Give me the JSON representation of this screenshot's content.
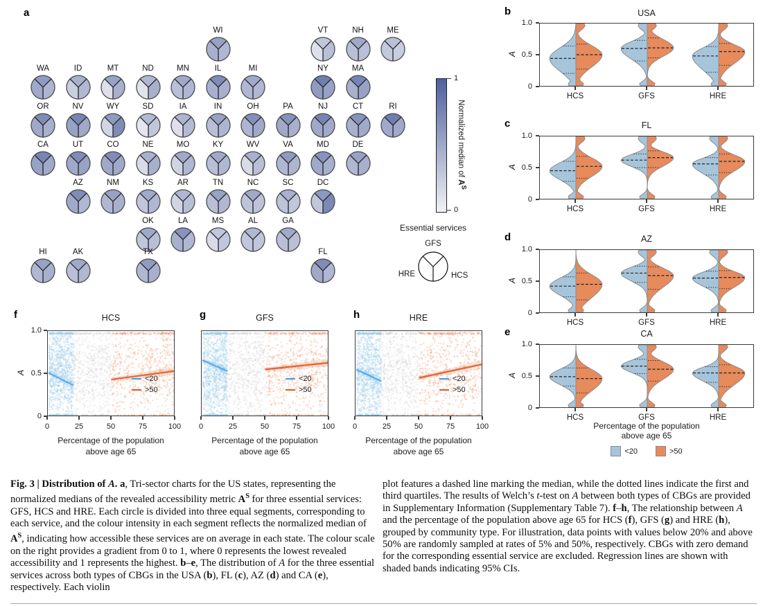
{
  "colors": {
    "map_low": "#f1f1f5",
    "map_high": "#4e619e",
    "violin_blue": "#a6c5db",
    "violin_orange": "#e78a5c",
    "violin_stroke": "#8c8c8c",
    "scatter_blue_pt": "#96c8e8",
    "scatter_orange_pt": "#ee8c5f",
    "scatter_gray_pt": "#b4b4b4",
    "line_blue": "#3c9ce8",
    "line_orange": "#d85c28",
    "axis": "#3a3a3a"
  },
  "panel_a": {
    "label": "a",
    "colorbar": {
      "top_tick": "1",
      "bottom_tick": "0",
      "title_prefix": "Normalized median of ",
      "title_math": "A",
      "title_sup": "S"
    },
    "services_legend": {
      "title": "Essential services",
      "top": "GFS",
      "left": "HRE",
      "right": "HCS"
    },
    "states": [
      {
        "abbr": "WI",
        "row": 1,
        "col": 6,
        "gfs": 0.55,
        "hre": 0.45,
        "hcs": 0.4
      },
      {
        "abbr": "VT",
        "row": 1,
        "col": 9,
        "gfs": 0.3,
        "hre": 0.12,
        "hcs": 0.35
      },
      {
        "abbr": "NH",
        "row": 1,
        "col": 10,
        "gfs": 0.5,
        "hre": 0.35,
        "hcs": 0.35
      },
      {
        "abbr": "ME",
        "row": 1,
        "col": 11,
        "gfs": 0.35,
        "hre": 0.28,
        "hcs": 0.25
      },
      {
        "abbr": "WA",
        "row": 2,
        "col": 1,
        "gfs": 0.6,
        "hre": 0.5,
        "hcs": 0.42
      },
      {
        "abbr": "ID",
        "row": 2,
        "col": 2,
        "gfs": 0.45,
        "hre": 0.25,
        "hcs": 0.4
      },
      {
        "abbr": "MT",
        "row": 2,
        "col": 3,
        "gfs": 0.55,
        "hre": 0.12,
        "hcs": 0.45
      },
      {
        "abbr": "ND",
        "row": 2,
        "col": 4,
        "gfs": 0.4,
        "hre": 0.1,
        "hcs": 0.45
      },
      {
        "abbr": "MN",
        "row": 2,
        "col": 5,
        "gfs": 0.5,
        "hre": 0.35,
        "hcs": 0.4
      },
      {
        "abbr": "IL",
        "row": 2,
        "col": 6,
        "gfs": 0.7,
        "hre": 0.45,
        "hcs": 0.45
      },
      {
        "abbr": "MI",
        "row": 2,
        "col": 7,
        "gfs": 0.5,
        "hre": 0.4,
        "hcs": 0.4
      },
      {
        "abbr": "NY",
        "row": 2,
        "col": 9,
        "gfs": 0.8,
        "hre": 0.6,
        "hcs": 0.55
      },
      {
        "abbr": "MA",
        "row": 2,
        "col": 10,
        "gfs": 0.75,
        "hre": 0.45,
        "hcs": 0.55
      },
      {
        "abbr": "OR",
        "row": 3,
        "col": 1,
        "gfs": 0.7,
        "hre": 0.5,
        "hcs": 0.45
      },
      {
        "abbr": "NV",
        "row": 3,
        "col": 2,
        "gfs": 0.75,
        "hre": 0.55,
        "hcs": 0.5
      },
      {
        "abbr": "WY",
        "row": 3,
        "col": 3,
        "gfs": 0.6,
        "hre": 0.2,
        "hcs": 0.7
      },
      {
        "abbr": "SD",
        "row": 3,
        "col": 4,
        "gfs": 0.38,
        "hre": 0.08,
        "hcs": 0.3
      },
      {
        "abbr": "IA",
        "row": 3,
        "col": 5,
        "gfs": 0.42,
        "hre": 0.12,
        "hcs": 0.38
      },
      {
        "abbr": "IN",
        "row": 3,
        "col": 6,
        "gfs": 0.55,
        "hre": 0.35,
        "hcs": 0.42
      },
      {
        "abbr": "OH",
        "row": 3,
        "col": 7,
        "gfs": 0.68,
        "hre": 0.42,
        "hcs": 0.5
      },
      {
        "abbr": "PA",
        "row": 3,
        "col": 8,
        "gfs": 0.66,
        "hre": 0.5,
        "hcs": 0.45
      },
      {
        "abbr": "NJ",
        "row": 3,
        "col": 9,
        "gfs": 0.75,
        "hre": 0.5,
        "hcs": 0.5
      },
      {
        "abbr": "CT",
        "row": 3,
        "col": 10,
        "gfs": 0.65,
        "hre": 0.45,
        "hcs": 0.5
      },
      {
        "abbr": "RI",
        "row": 3,
        "col": 11,
        "gfs": 0.8,
        "hre": 0.5,
        "hcs": 0.5
      },
      {
        "abbr": "CA",
        "row": 4,
        "col": 1,
        "gfs": 0.75,
        "hre": 0.55,
        "hcs": 0.5
      },
      {
        "abbr": "UT",
        "row": 4,
        "col": 2,
        "gfs": 0.7,
        "hre": 0.5,
        "hcs": 0.55
      },
      {
        "abbr": "CO",
        "row": 4,
        "col": 3,
        "gfs": 0.7,
        "hre": 0.5,
        "hcs": 0.5
      },
      {
        "abbr": "NE",
        "row": 4,
        "col": 4,
        "gfs": 0.45,
        "hre": 0.15,
        "hcs": 0.45
      },
      {
        "abbr": "MO",
        "row": 4,
        "col": 5,
        "gfs": 0.5,
        "hre": 0.2,
        "hcs": 0.4
      },
      {
        "abbr": "KY",
        "row": 4,
        "col": 6,
        "gfs": 0.5,
        "hre": 0.35,
        "hcs": 0.4
      },
      {
        "abbr": "WV",
        "row": 4,
        "col": 7,
        "gfs": 0.45,
        "hre": 0.15,
        "hcs": 0.35
      },
      {
        "abbr": "VA",
        "row": 4,
        "col": 8,
        "gfs": 0.6,
        "hre": 0.4,
        "hcs": 0.42
      },
      {
        "abbr": "MD",
        "row": 4,
        "col": 9,
        "gfs": 0.65,
        "hre": 0.5,
        "hcs": 0.45
      },
      {
        "abbr": "DE",
        "row": 4,
        "col": 10,
        "gfs": 0.55,
        "hre": 0.4,
        "hcs": 0.45
      },
      {
        "abbr": "AZ",
        "row": 5,
        "col": 2,
        "gfs": 0.7,
        "hre": 0.5,
        "hcs": 0.4
      },
      {
        "abbr": "NM",
        "row": 5,
        "col": 3,
        "gfs": 0.55,
        "hre": 0.4,
        "hcs": 0.45
      },
      {
        "abbr": "KS",
        "row": 5,
        "col": 4,
        "gfs": 0.5,
        "hre": 0.3,
        "hcs": 0.4
      },
      {
        "abbr": "AR",
        "row": 5,
        "col": 5,
        "gfs": 0.4,
        "hre": 0.2,
        "hcs": 0.35
      },
      {
        "abbr": "TN",
        "row": 5,
        "col": 6,
        "gfs": 0.55,
        "hre": 0.35,
        "hcs": 0.4
      },
      {
        "abbr": "NC",
        "row": 5,
        "col": 7,
        "gfs": 0.5,
        "hre": 0.32,
        "hcs": 0.32
      },
      {
        "abbr": "SC",
        "row": 5,
        "col": 8,
        "gfs": 0.45,
        "hre": 0.32,
        "hcs": 0.3
      },
      {
        "abbr": "DC",
        "row": 5,
        "col": 9,
        "gfs": 0.62,
        "hre": 0.3,
        "hcs": 0.72
      },
      {
        "abbr": "OK",
        "row": 6,
        "col": 4,
        "gfs": 0.5,
        "hre": 0.3,
        "hcs": 0.35
      },
      {
        "abbr": "LA",
        "row": 6,
        "col": 5,
        "gfs": 0.65,
        "hre": 0.45,
        "hcs": 0.4
      },
      {
        "abbr": "MS",
        "row": 6,
        "col": 6,
        "gfs": 0.3,
        "hre": 0.15,
        "hcs": 0.3
      },
      {
        "abbr": "AL",
        "row": 6,
        "col": 7,
        "gfs": 0.4,
        "hre": 0.3,
        "hcs": 0.3
      },
      {
        "abbr": "GA",
        "row": 6,
        "col": 8,
        "gfs": 0.5,
        "hre": 0.35,
        "hcs": 0.35
      },
      {
        "abbr": "HI",
        "row": 7,
        "col": 1,
        "gfs": 0.55,
        "hre": 0.4,
        "hcs": 0.45
      },
      {
        "abbr": "AK",
        "row": 7,
        "col": 2,
        "gfs": 0.5,
        "hre": 0.35,
        "hcs": 0.4
      },
      {
        "abbr": "TX",
        "row": 7,
        "col": 4,
        "gfs": 0.6,
        "hre": 0.4,
        "hcs": 0.45
      },
      {
        "abbr": "FL",
        "row": 7,
        "col": 9,
        "gfs": 0.7,
        "hre": 0.5,
        "hcs": 0.4
      }
    ]
  },
  "chart_data": [
    {
      "type": "violin",
      "panels": [
        {
          "label": "b",
          "title": "USA",
          "ylabel": "A",
          "y_ticks": [
            "1.0",
            "0.5",
            "0"
          ],
          "categories": [
            "HCS",
            "GFS",
            "HRE"
          ],
          "groups": [
            {
              "service": "HCS",
              "blue": {
                "median": 0.44,
                "q1": 0.2,
                "q3": 0.64
              },
              "orange": {
                "median": 0.5,
                "q1": 0.27,
                "q3": 0.67
              }
            },
            {
              "service": "GFS",
              "blue": {
                "median": 0.6,
                "q1": 0.4,
                "q3": 0.73
              },
              "orange": {
                "median": 0.61,
                "q1": 0.45,
                "q3": 0.77
              }
            },
            {
              "service": "HRE",
              "blue": {
                "median": 0.48,
                "q1": 0.22,
                "q3": 0.63
              },
              "orange": {
                "median": 0.55,
                "q1": 0.33,
                "q3": 0.68
              }
            }
          ]
        },
        {
          "label": "c",
          "title": "FL",
          "ylabel": "A",
          "y_ticks": [
            "1.0",
            "0.5",
            "0"
          ],
          "categories": [
            "HCS",
            "GFS",
            "HRE"
          ],
          "groups": [
            {
              "service": "HCS",
              "blue": {
                "median": 0.45,
                "q1": 0.28,
                "q3": 0.6
              },
              "orange": {
                "median": 0.52,
                "q1": 0.33,
                "q3": 0.68
              }
            },
            {
              "service": "GFS",
              "blue": {
                "median": 0.62,
                "q1": 0.5,
                "q3": 0.72
              },
              "orange": {
                "median": 0.66,
                "q1": 0.5,
                "q3": 0.77
              }
            },
            {
              "service": "HRE",
              "blue": {
                "median": 0.56,
                "q1": 0.38,
                "q3": 0.66
              },
              "orange": {
                "median": 0.6,
                "q1": 0.42,
                "q3": 0.72
              }
            }
          ]
        },
        {
          "label": "d",
          "title": "AZ",
          "ylabel": "A",
          "y_ticks": [
            "1.0",
            "0.5",
            "0"
          ],
          "categories": [
            "HCS",
            "GFS",
            "HRE"
          ],
          "groups": [
            {
              "service": "HCS",
              "blue": {
                "median": 0.42,
                "q1": 0.25,
                "q3": 0.57
              },
              "orange": {
                "median": 0.45,
                "q1": 0.2,
                "q3": 0.63
              }
            },
            {
              "service": "GFS",
              "blue": {
                "median": 0.63,
                "q1": 0.48,
                "q3": 0.74
              },
              "orange": {
                "median": 0.59,
                "q1": 0.37,
                "q3": 0.73
              }
            },
            {
              "service": "HRE",
              "blue": {
                "median": 0.55,
                "q1": 0.4,
                "q3": 0.66
              },
              "orange": {
                "median": 0.56,
                "q1": 0.38,
                "q3": 0.67
              }
            }
          ]
        },
        {
          "label": "e",
          "title": "CA",
          "ylabel": "A",
          "y_ticks": [
            "1.0",
            "0.5",
            "0"
          ],
          "categories": [
            "HCS",
            "GFS",
            "HRE"
          ],
          "groups": [
            {
              "service": "HCS",
              "blue": {
                "median": 0.49,
                "q1": 0.34,
                "q3": 0.63
              },
              "orange": {
                "median": 0.46,
                "q1": 0.23,
                "q3": 0.63
              }
            },
            {
              "service": "GFS",
              "blue": {
                "median": 0.66,
                "q1": 0.54,
                "q3": 0.77
              },
              "orange": {
                "median": 0.61,
                "q1": 0.42,
                "q3": 0.75
              }
            },
            {
              "service": "HRE",
              "blue": {
                "median": 0.55,
                "q1": 0.4,
                "q3": 0.65
              },
              "orange": {
                "median": 0.55,
                "q1": 0.33,
                "q3": 0.68
              }
            }
          ]
        }
      ],
      "footer": {
        "xlabel_line1": "Percentage of the population",
        "xlabel_line2": "above age 65",
        "legend": [
          {
            "label": "<20",
            "color": "blue"
          },
          {
            "label": ">50",
            "color": "orange"
          }
        ]
      }
    },
    {
      "type": "scatter",
      "panels": [
        {
          "label": "f",
          "title": "HCS",
          "ylabel": "A",
          "y_ticks": [
            "1.0",
            "0.5",
            "0"
          ],
          "x_ticks": [
            "0",
            "25",
            "50",
            "75",
            "100"
          ],
          "xlabel_line1": "Percentage of the population",
          "xlabel_line2": "above age 65",
          "legend": [
            {
              "label": "<20"
            },
            {
              "label": ">50"
            }
          ],
          "blue_line": {
            "x": [
              0,
              20
            ],
            "y": [
              0.51,
              0.36
            ]
          },
          "orange_line": {
            "x": [
              50,
              100
            ],
            "y": [
              0.43,
              0.53
            ]
          }
        },
        {
          "label": "g",
          "title": "GFS",
          "ylabel": "A",
          "y_ticks": [
            "1.0",
            "0.5",
            "0"
          ],
          "x_ticks": [
            "0",
            "25",
            "50",
            "75",
            "100"
          ],
          "xlabel_line1": "Percentage of the population",
          "xlabel_line2": "above age 65",
          "legend": [
            {
              "label": "<20"
            },
            {
              "label": ">50"
            }
          ],
          "blue_line": {
            "x": [
              0,
              20
            ],
            "y": [
              0.66,
              0.53
            ]
          },
          "orange_line": {
            "x": [
              50,
              100
            ],
            "y": [
              0.55,
              0.63
            ]
          }
        },
        {
          "label": "h",
          "title": "HRE",
          "ylabel": "A",
          "y_ticks": [
            "1.0",
            "0.5",
            "0"
          ],
          "x_ticks": [
            "0",
            "25",
            "50",
            "75",
            "100"
          ],
          "xlabel_line1": "Percentage of the population",
          "xlabel_line2": "above age 65",
          "legend": [
            {
              "label": "<20"
            },
            {
              "label": ">50"
            }
          ],
          "blue_line": {
            "x": [
              0,
              20
            ],
            "y": [
              0.55,
              0.41
            ]
          },
          "orange_line": {
            "x": [
              50,
              100
            ],
            "y": [
              0.45,
              0.61
            ]
          }
        }
      ]
    }
  ],
  "caption": {
    "left": [
      {
        "t": "Fig. 3 | Distribution of ",
        "b": true
      },
      {
        "t": "A",
        "b": true,
        "i": true
      },
      {
        "t": ". ",
        "b": true
      },
      {
        "t": "a",
        "b": true
      },
      {
        "t": ", Tri-sector charts for the US states, representing the normalized medians of the revealed accessibility metric "
      },
      {
        "t": "A",
        "b": true
      },
      {
        "t": "S",
        "b": true,
        "sup": true
      },
      {
        "t": " for three essential services: GFS, HCS and HRE. Each circle is divided into three equal segments, corresponding to each service, and the colour intensity in each segment reflects the normalized median of "
      },
      {
        "t": "A",
        "b": true
      },
      {
        "t": "S",
        "b": true,
        "sup": true
      },
      {
        "t": ", indicating how accessible these services are on average in each state. The colour scale on the right provides a gradient from 0 to 1, where 0 represents the lowest revealed accessibility and 1 represents the highest. "
      },
      {
        "t": "b",
        "b": true
      },
      {
        "t": "–"
      },
      {
        "t": "e",
        "b": true
      },
      {
        "t": ", The distribution of "
      },
      {
        "t": "A",
        "i": true
      },
      {
        "t": " for the three essential services across both types of CBGs in the USA ("
      },
      {
        "t": "b",
        "b": true
      },
      {
        "t": "), FL ("
      },
      {
        "t": "c",
        "b": true
      },
      {
        "t": "), AZ ("
      },
      {
        "t": "d",
        "b": true
      },
      {
        "t": ") and CA ("
      },
      {
        "t": "e",
        "b": true
      },
      {
        "t": "), respectively. Each violin"
      }
    ],
    "right": [
      {
        "t": "plot features a dashed line marking the median, while the dotted lines indicate the first and third quartiles. The results of Welch’s "
      },
      {
        "t": "t",
        "i": true
      },
      {
        "t": "-test on "
      },
      {
        "t": "A",
        "i": true
      },
      {
        "t": " between both types of CBGs are provided in Supplementary Information (Supplementary Table 7). "
      },
      {
        "t": "f",
        "b": true
      },
      {
        "t": "–"
      },
      {
        "t": "h",
        "b": true
      },
      {
        "t": ", The relationship between "
      },
      {
        "t": "A",
        "i": true
      },
      {
        "t": " and the percentage of the population above age 65 for HCS ("
      },
      {
        "t": "f",
        "b": true
      },
      {
        "t": "), GFS ("
      },
      {
        "t": "g",
        "b": true
      },
      {
        "t": ") and HRE ("
      },
      {
        "t": "h",
        "b": true
      },
      {
        "t": "), grouped by community type. For illustration, data points with values below 20% and above 50% are randomly sampled at rates of 5% and 50%, respectively. CBGs with zero demand for the corresponding essential service are excluded. Regression lines are shown with shaded bands indicating 95% CIs."
      }
    ]
  }
}
